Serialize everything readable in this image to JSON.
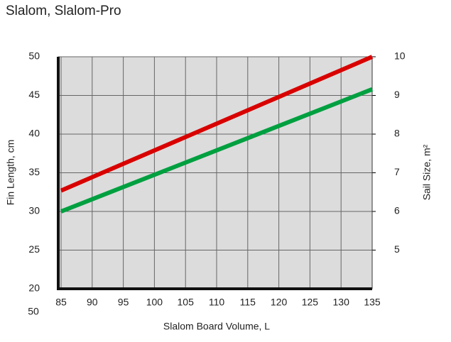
{
  "chart_data": {
    "type": "line",
    "title": "Slalom, Slalom-Pro",
    "xlabel": "Slalom Board Volume, L",
    "ylabel": "Fin Length, cm",
    "y2label": "Sail Size, m²",
    "annotation": "50",
    "x": [
      85,
      135
    ],
    "series": [
      {
        "color": "#d90000",
        "values": [
          32.7,
          50
        ]
      },
      {
        "color": "#00a040",
        "values": [
          30,
          45.8
        ]
      }
    ],
    "xlim": [
      85,
      135
    ],
    "xticks": [
      85,
      90,
      95,
      100,
      105,
      110,
      115,
      120,
      125,
      130,
      135
    ],
    "ylim": [
      20,
      50
    ],
    "yticks": [
      20,
      25,
      30,
      35,
      40,
      45,
      50
    ],
    "y2lim": [
      4,
      10
    ],
    "y2ticks": [
      5,
      6,
      7,
      8,
      9,
      10
    ],
    "grid": true,
    "background": "#dcdcdc"
  }
}
